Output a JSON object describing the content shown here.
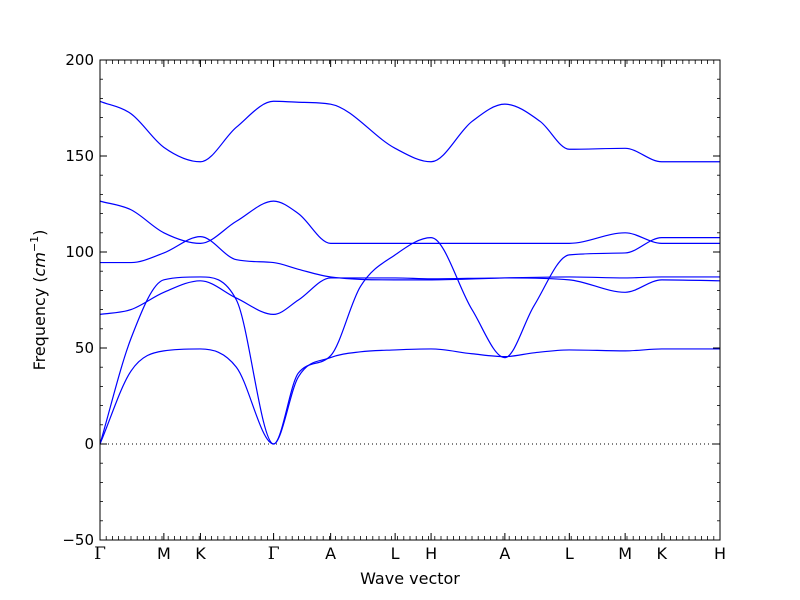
{
  "chart_data": {
    "type": "line",
    "title": "",
    "xlabel": "Wave vector",
    "ylabel": {
      "text": "Frequency (",
      "unit_base": "cm",
      "unit_exp": "−1",
      "close": ")"
    },
    "ylim": [
      -50,
      200
    ],
    "yticks": [
      -50,
      0,
      50,
      100,
      150,
      200
    ],
    "xlim": [
      0,
      10
    ],
    "kpoints": [
      {
        "label": "Γ",
        "x": 0.0
      },
      {
        "label": "M",
        "x": 1.03
      },
      {
        "label": "K",
        "x": 1.62
      },
      {
        "label": "Γ",
        "x": 2.8
      },
      {
        "label": "A",
        "x": 3.72
      },
      {
        "label": "L",
        "x": 4.76
      },
      {
        "label": "H",
        "x": 5.34
      },
      {
        "label": "A",
        "x": 6.53
      },
      {
        "label": "L",
        "x": 7.57
      },
      {
        "label": "M",
        "x": 8.47
      },
      {
        "label": "K",
        "x": 9.06
      },
      {
        "label": "H",
        "x": 10.0
      }
    ],
    "zero_line": true,
    "line_color": "#0000ff",
    "series": [
      {
        "x": [
          0,
          0.5,
          1.03,
          1.62,
          2.2,
          2.8,
          3.2,
          3.72,
          4.2,
          4.76,
          5.34,
          6.0,
          6.53,
          7.0,
          7.57,
          8.47,
          9.06,
          10.0
        ],
        "values": [
          0,
          38,
          48.5,
          49.5,
          40,
          0,
          35,
          45,
          48,
          49,
          49.5,
          47,
          45.5,
          47.5,
          49,
          48.5,
          49.5,
          49.5
        ]
      },
      {
        "x": [
          0,
          0.5,
          1.03,
          1.62,
          2.2,
          2.8,
          3.2,
          3.72,
          4.2,
          4.76,
          5.34,
          6.0,
          6.53,
          7.0,
          7.57,
          8.47,
          9.06,
          10.0
        ],
        "values": [
          0,
          55,
          85.5,
          87,
          75,
          0,
          37,
          46,
          82,
          98.5,
          107.5,
          70,
          45,
          72,
          98.5,
          99.5,
          107.5,
          107.5
        ]
      },
      {
        "x": [
          0,
          0.5,
          1.03,
          1.62,
          2.2,
          2.8,
          3.2,
          3.72,
          4.76,
          5.34,
          6.53,
          7.57,
          8.47,
          9.06,
          10.0
        ],
        "values": [
          67.5,
          70,
          79,
          85,
          76,
          67.5,
          75,
          86.5,
          86.5,
          86,
          86.5,
          85.5,
          79,
          85.5,
          85
        ]
      },
      {
        "x": [
          0,
          0.5,
          1.03,
          1.62,
          2.2,
          2.8,
          3.2,
          3.72,
          4.76,
          5.34,
          6.53,
          7.57,
          8.47,
          9.06,
          10.0
        ],
        "values": [
          94.5,
          94.5,
          99.5,
          108,
          96,
          94.5,
          91,
          87,
          85.5,
          85.5,
          86.5,
          87,
          86.5,
          87,
          87
        ]
      },
      {
        "x": [
          0,
          0.5,
          1.03,
          1.62,
          2.2,
          2.8,
          3.2,
          3.72,
          4.76,
          5.34,
          6.53,
          7.57,
          8.47,
          9.06,
          10.0
        ],
        "values": [
          126.5,
          122,
          110,
          104.5,
          116,
          126.5,
          120,
          104.5,
          104.5,
          104.5,
          104.5,
          104.5,
          110,
          104.5,
          104.5
        ]
      },
      {
        "x": [
          0,
          0.5,
          1.03,
          1.62,
          2.2,
          2.8,
          3.2,
          3.72,
          4.76,
          5.34,
          6.0,
          6.53,
          7.1,
          7.57,
          8.47,
          9.06,
          10.0
        ],
        "values": [
          178.5,
          172,
          154.5,
          147,
          165,
          178.5,
          178,
          177,
          154,
          147,
          168,
          177,
          168,
          153.5,
          154,
          147,
          147
        ]
      }
    ]
  }
}
